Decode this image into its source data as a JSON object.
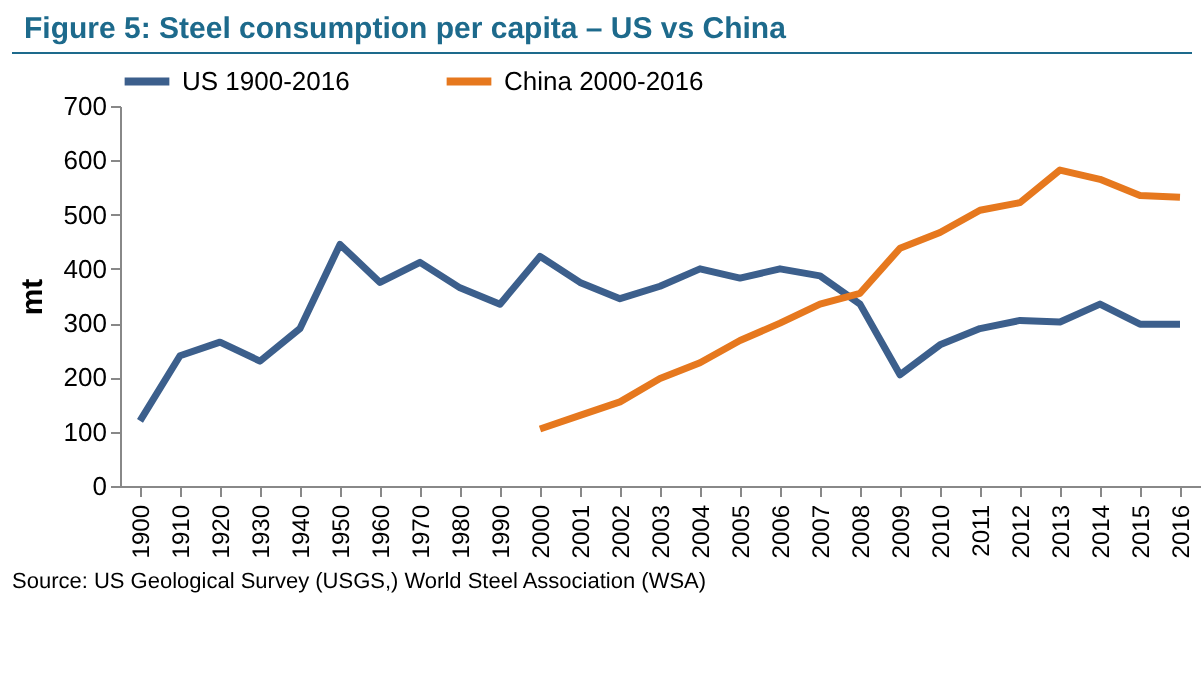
{
  "chart_data": {
    "type": "line",
    "title": "Figure 5: Steel consumption per capita – US vs China",
    "ylabel": "mt",
    "categories": [
      "1900",
      "1910",
      "1920",
      "1930",
      "1940",
      "1950",
      "1960",
      "1970",
      "1980",
      "1990",
      "2000",
      "2001",
      "2002",
      "2003",
      "2004",
      "2005",
      "2006",
      "2007",
      "2008",
      "2009",
      "2010",
      "2011",
      "2012",
      "2013",
      "2014",
      "2015",
      "2016"
    ],
    "series": [
      {
        "name": "US 1900-2016",
        "color": "#3c5f8c",
        "values": [
          120,
          240,
          265,
          230,
          290,
          445,
          375,
          412,
          365,
          335,
          423,
          375,
          345,
          368,
          400,
          383,
          400,
          387,
          335,
          205,
          260,
          290,
          305,
          302,
          335,
          298,
          298
        ]
      },
      {
        "name": "China 2000-2016",
        "color": "#e6781e",
        "values": [
          null,
          null,
          null,
          null,
          null,
          null,
          null,
          null,
          null,
          null,
          105,
          130,
          155,
          198,
          227,
          268,
          300,
          335,
          355,
          438,
          467,
          508,
          522,
          582,
          565,
          535,
          532
        ]
      }
    ],
    "ylim": [
      0,
      700
    ],
    "yticks": [
      0,
      100,
      200,
      300,
      400,
      500,
      600,
      700
    ],
    "grid": false,
    "legend": "top",
    "marker": "none",
    "line_style": "solid",
    "annotations": [
      "Source: US Geological Survey (USGS,) World Steel Association (WSA)"
    ]
  }
}
